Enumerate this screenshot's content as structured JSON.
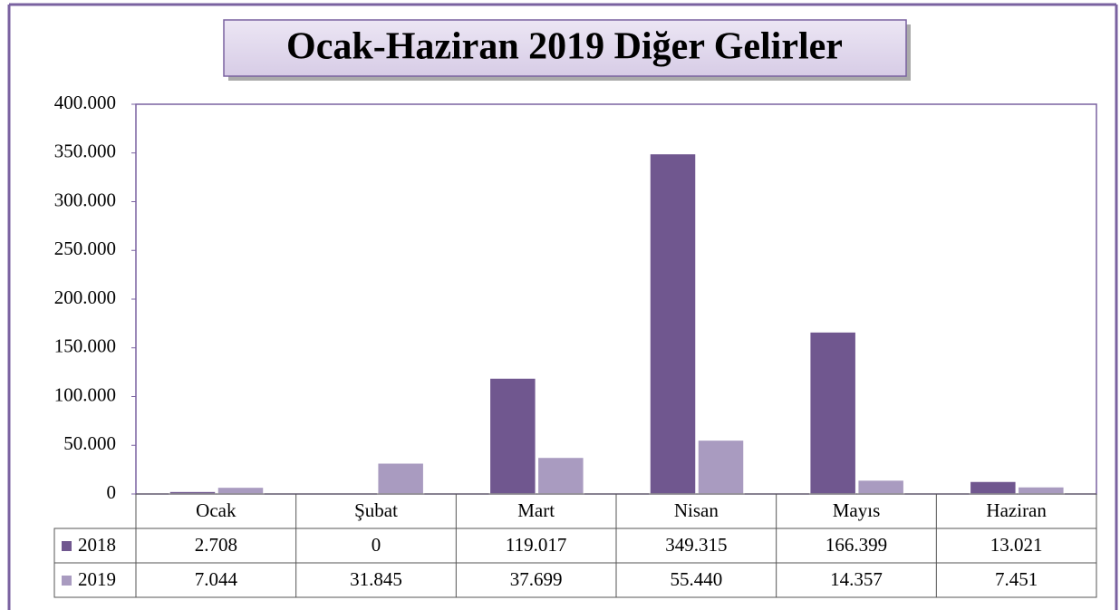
{
  "chart_data": {
    "type": "bar",
    "title": "Ocak-Haziran 2019 Diğer Gelirler",
    "categories": [
      "Ocak",
      "Şubat",
      "Mart",
      "Nisan",
      "Mayıs",
      "Haziran"
    ],
    "series": [
      {
        "name": "2018",
        "color": "#70578f",
        "values": [
          2708,
          0,
          119017,
          349315,
          166399,
          13021
        ],
        "value_labels": [
          "2.708",
          "0",
          "119.017",
          "349.315",
          "166.399",
          "13.021"
        ]
      },
      {
        "name": "2019",
        "color": "#a99bc0",
        "values": [
          7044,
          31845,
          37699,
          55440,
          14357,
          7451
        ],
        "value_labels": [
          "7.044",
          "31.845",
          "37.699",
          "55.440",
          "14.357",
          "7.451"
        ]
      }
    ],
    "ylim": [
      0,
      400000
    ],
    "yticks": [
      0,
      {
        "value": 50000,
        "label": "50.000"
      },
      {
        "value": 100000,
        "label": "100.000"
      },
      {
        "value": 150000,
        "label": "150.000"
      },
      {
        "value": 200000,
        "label": "200.000"
      },
      {
        "value": 250000,
        "label": "250.000"
      },
      {
        "value": 300000,
        "label": "300.000"
      },
      {
        "value": 350000,
        "label": "350.000"
      },
      {
        "value": 400000,
        "label": "400.000"
      }
    ],
    "grid": false
  }
}
